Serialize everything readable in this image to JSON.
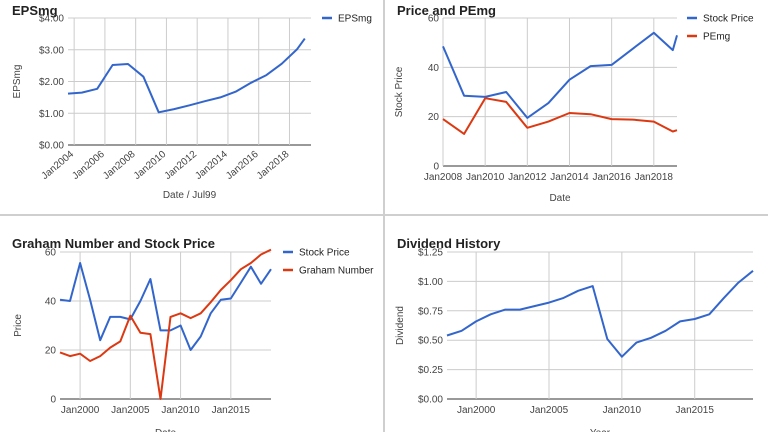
{
  "chart_data": [
    {
      "type": "line",
      "title": "EPSmg",
      "xlabel": "Date / Jul99",
      "ylabel": "EPSmg",
      "x_ticks": [
        "Jan2004",
        "Jan2006",
        "Jan2008",
        "Jan2010",
        "Jan2012",
        "Jan2014",
        "Jan2016",
        "Jan2018"
      ],
      "y_tick_labels": [
        "$0.00",
        "$1.00",
        "$2.00",
        "$3.00",
        "$4.00"
      ],
      "ylim": [
        0,
        4
      ],
      "xlim": [
        2003.6,
        2019.4
      ],
      "legend_position": "right",
      "grid": true,
      "colors": [
        "#3366cc"
      ],
      "series": [
        {
          "name": "EPSmg",
          "x": [
            2003.6,
            2004.5,
            2005.5,
            2006.5,
            2007.5,
            2008.5,
            2009.5,
            2010.5,
            2011.5,
            2012.5,
            2013.5,
            2014.5,
            2015.5,
            2016.5,
            2017.5,
            2018.5,
            2019.0
          ],
          "y": [
            1.62,
            1.65,
            1.77,
            2.52,
            2.55,
            2.15,
            1.03,
            1.13,
            1.25,
            1.38,
            1.5,
            1.68,
            1.96,
            2.2,
            2.56,
            3.02,
            3.35
          ]
        }
      ]
    },
    {
      "type": "line",
      "title": "Price and PEmg",
      "xlabel": "Date",
      "ylabel": "Stock Price",
      "x_ticks": [
        "Jan2008",
        "Jan2010",
        "Jan2012",
        "Jan2014",
        "Jan2016",
        "Jan2018"
      ],
      "y_tick_labels": [
        "0",
        "20",
        "40",
        "60"
      ],
      "ylim": [
        0,
        60
      ],
      "xlim": [
        2008,
        2019.1
      ],
      "legend_position": "right",
      "grid": true,
      "colors": [
        "#3366cc",
        "#dc3912"
      ],
      "series": [
        {
          "name": "Stock Price",
          "x": [
            2008,
            2009,
            2010,
            2011,
            2012,
            2013,
            2014,
            2015,
            2016,
            2017,
            2018,
            2018.9,
            2019.1
          ],
          "y": [
            48.5,
            28.5,
            28,
            30,
            19.5,
            25.5,
            35,
            40.5,
            41,
            47.5,
            54,
            47,
            53
          ]
        },
        {
          "name": "PEmg",
          "x": [
            2008,
            2009,
            2010,
            2011,
            2012,
            2013,
            2014,
            2015,
            2016,
            2017,
            2018,
            2018.9,
            2019.1
          ],
          "y": [
            19,
            13,
            27.5,
            26,
            15.5,
            18,
            21.5,
            21,
            19,
            18.8,
            18,
            14,
            14.5
          ]
        }
      ]
    },
    {
      "type": "line",
      "title": "Graham Number and Stock Price",
      "xlabel": "Date",
      "ylabel": "Price",
      "x_ticks": [
        "Jan2000",
        "Jan2005",
        "Jan2010",
        "Jan2015"
      ],
      "y_tick_labels": [
        "0",
        "20",
        "40",
        "60"
      ],
      "ylim": [
        0,
        60
      ],
      "xlim": [
        1998,
        2019
      ],
      "legend_position": "right",
      "grid": true,
      "colors": [
        "#3366cc",
        "#dc3912"
      ],
      "series": [
        {
          "name": "Stock Price",
          "x": [
            1998,
            1999,
            2000,
            2001,
            2002,
            2003,
            2004,
            2005,
            2006,
            2007,
            2008,
            2009,
            2010,
            2011,
            2012,
            2013,
            2014,
            2015,
            2016,
            2017,
            2018,
            2019
          ],
          "y": [
            40.5,
            40,
            55.5,
            40.5,
            24,
            33.5,
            33.5,
            32.5,
            40,
            49,
            28,
            28,
            30,
            20,
            25.5,
            35,
            40.5,
            41,
            47.5,
            54,
            47,
            53
          ]
        },
        {
          "name": "Graham Number",
          "x": [
            1998,
            1999,
            2000,
            2001,
            2002,
            2003,
            2004,
            2005,
            2006,
            2007,
            2008,
            2009,
            2010,
            2011,
            2012,
            2013,
            2014,
            2015,
            2016,
            2017,
            2018,
            2019
          ],
          "y": [
            19,
            17.5,
            18.5,
            15.5,
            17.5,
            21,
            23.5,
            34,
            27,
            26.5,
            0,
            33.5,
            35,
            33,
            35,
            39.5,
            44.5,
            48.5,
            53,
            55.5,
            59,
            61
          ]
        }
      ]
    },
    {
      "type": "line",
      "title": "Dividend History",
      "xlabel": "Year",
      "ylabel": "Dividend",
      "x_ticks": [
        "Jan2000",
        "Jan2005",
        "Jan2010",
        "Jan2015"
      ],
      "y_tick_labels": [
        "$0.00",
        "$0.25",
        "$0.50",
        "$0.75",
        "$1.00",
        "$1.25"
      ],
      "ylim": [
        0,
        1.25
      ],
      "xlim": [
        1998,
        2019
      ],
      "legend_position": "none",
      "grid": true,
      "colors": [
        "#3366cc"
      ],
      "series": [
        {
          "name": "",
          "x": [
            1998,
            1999,
            2000,
            2001,
            2002,
            2003,
            2004,
            2005,
            2006,
            2007,
            2008,
            2009,
            2010,
            2011,
            2012,
            2013,
            2014,
            2015,
            2016,
            2017,
            2018,
            2019
          ],
          "y": [
            0.54,
            0.58,
            0.66,
            0.72,
            0.76,
            0.76,
            0.79,
            0.82,
            0.86,
            0.92,
            0.96,
            0.51,
            0.36,
            0.48,
            0.52,
            0.58,
            0.66,
            0.68,
            0.72,
            0.86,
            0.99,
            1.09
          ]
        }
      ]
    }
  ]
}
